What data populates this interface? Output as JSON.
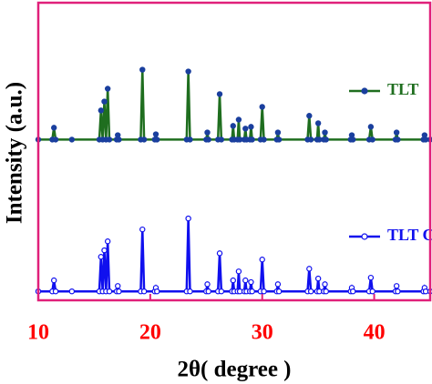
{
  "chart_data": {
    "type": "line",
    "x_label": "2θ( degree )",
    "y_label": "Intensity (a.u.)",
    "xlim": [
      10,
      45
    ],
    "xticks": [
      10,
      20,
      30,
      40
    ],
    "ylim": [
      0,
      100
    ],
    "x": [
      10,
      11.25,
      11.4,
      11.55,
      13,
      15.45,
      15.6,
      15.75,
      15.9,
      16.05,
      16.2,
      16.35,
      17.0,
      17.1,
      17.2,
      19.15,
      19.3,
      19.45,
      20.4,
      20.5,
      20.6,
      23.25,
      23.4,
      23.55,
      25.0,
      25.1,
      25.2,
      26.05,
      26.2,
      26.35,
      27.3,
      27.4,
      27.5,
      27.8,
      27.9,
      28.0,
      28.4,
      28.5,
      28.6,
      28.9,
      29.0,
      29.1,
      29.85,
      30.0,
      30.15,
      31.3,
      31.4,
      31.5,
      34.05,
      34.2,
      34.35,
      34.9,
      35.0,
      35.1,
      35.5,
      35.6,
      35.7,
      37.9,
      38.0,
      38.1,
      39.55,
      39.7,
      39.85,
      41.9,
      42.0,
      42.1,
      44.4,
      44.5,
      44.6,
      45
    ],
    "series": [
      {
        "name": "TLT",
        "color": "#1f6e1f",
        "marker_color": "#1a3f9e",
        "values": [
          54,
          54,
          58.0,
          54,
          54,
          54,
          63.8,
          54,
          66.8,
          54,
          71.1,
          54,
          54,
          55.5,
          54,
          54,
          77.5,
          54,
          54,
          55.8,
          54,
          54,
          76.9,
          54,
          54,
          56.4,
          54,
          54,
          69.3,
          54,
          54,
          58.6,
          54,
          54,
          60.7,
          54,
          54,
          57.7,
          54,
          54,
          58.3,
          54,
          54,
          65.0,
          54,
          54,
          56.4,
          54,
          54,
          62.0,
          54,
          54,
          59.5,
          54,
          54,
          56.4,
          54,
          54,
          55.5,
          54,
          54,
          58.3,
          54,
          54,
          56.4,
          54,
          54,
          55.5,
          54,
          54
        ]
      },
      {
        "name": "TLT CIF",
        "color": "#1010ee",
        "marker_color": "#ffffff",
        "values": [
          3,
          3,
          6.7,
          3,
          3,
          3,
          14.6,
          3,
          16.8,
          3,
          19.8,
          3,
          3,
          4.8,
          3,
          3,
          23.8,
          3,
          3,
          4.2,
          3,
          3,
          27.5,
          3,
          3,
          5.4,
          3,
          3,
          15.8,
          3,
          3,
          6.7,
          3,
          3,
          9.7,
          3,
          3,
          6.7,
          3,
          3,
          6.1,
          3,
          3,
          13.7,
          3,
          3,
          5.4,
          3,
          3,
          10.6,
          3,
          3,
          7.3,
          3,
          3,
          5.4,
          3,
          3,
          4.2,
          3,
          3,
          7.6,
          3,
          3,
          4.8,
          3,
          3,
          4.2,
          3,
          3
        ]
      }
    ]
  }
}
